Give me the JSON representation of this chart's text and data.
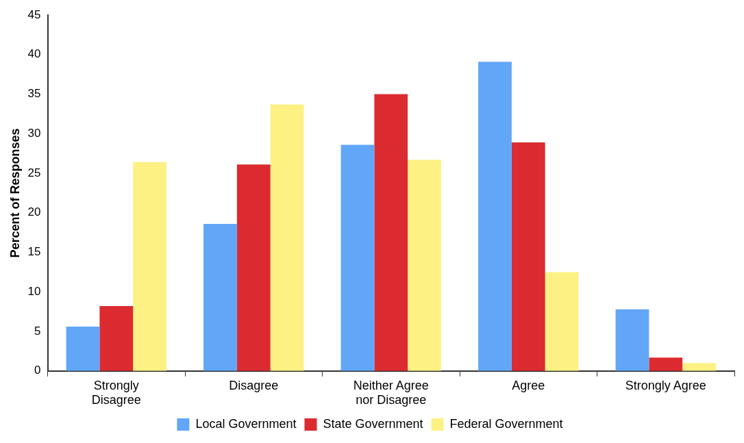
{
  "chart_data": {
    "type": "bar",
    "ylabel": "Percent of Responses",
    "categories": [
      "Strongly Disagree",
      "Disagree",
      "Neither Agree nor Disagree",
      "Agree",
      "Strongly Agree"
    ],
    "series": [
      {
        "name": "Local Government",
        "color": "#62a6f8",
        "values": [
          5.6,
          18.6,
          28.6,
          39.1,
          7.8
        ]
      },
      {
        "name": "State Government",
        "color": "#dc2b30",
        "values": [
          8.2,
          26.1,
          35.0,
          28.9,
          1.7
        ]
      },
      {
        "name": "Federal Government",
        "color": "#fdf184",
        "values": [
          26.4,
          33.7,
          26.7,
          12.5,
          1.0
        ]
      }
    ],
    "ylim": [
      0,
      45
    ],
    "yticks": [
      0,
      5,
      10,
      15,
      20,
      25,
      30,
      35,
      40,
      45
    ],
    "grid": false,
    "legend": "bottom"
  }
}
